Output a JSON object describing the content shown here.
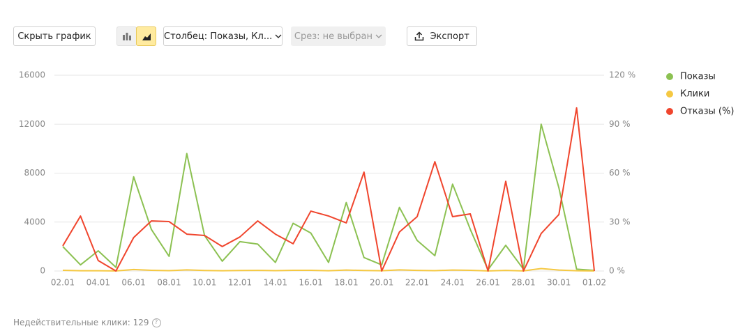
{
  "toolbar": {
    "hide_chart": "Скрыть график",
    "column": "Столбец: Показы, Кл...",
    "slice": "Срез: не выбран",
    "export": "Экспорт"
  },
  "chart_data": {
    "type": "line",
    "categories": [
      "02.01",
      null,
      "04.01",
      null,
      "06.01",
      null,
      "08.01",
      null,
      "10.01",
      null,
      "12.01",
      null,
      "14.01",
      null,
      "16.01",
      null,
      "18.01",
      null,
      "20.01",
      null,
      "22.01",
      null,
      "24.01",
      null,
      "26.01",
      null,
      "28.01",
      null,
      "30.01",
      null,
      "01.02"
    ],
    "series": [
      {
        "name": "Показы",
        "color": "#8cc152",
        "values": [
          2000,
          500,
          1650,
          300,
          7700,
          3400,
          1200,
          9600,
          2900,
          800,
          2400,
          2200,
          700,
          3900,
          3100,
          700,
          5600,
          1100,
          500,
          5200,
          2500,
          1250,
          7100,
          3400,
          100,
          2100,
          150,
          12000,
          6800,
          150,
          50
        ]
      },
      {
        "name": "Клики",
        "color": "#f5c842",
        "values": [
          60,
          20,
          20,
          10,
          120,
          60,
          30,
          90,
          40,
          20,
          40,
          50,
          30,
          60,
          60,
          20,
          80,
          40,
          20,
          90,
          50,
          30,
          80,
          60,
          10,
          50,
          10,
          200,
          80,
          20,
          10
        ]
      },
      {
        "name": "Отказы (%)",
        "color": "#f0452d",
        "axis": "y2",
        "values": [
          15.4,
          33.7,
          6.4,
          0,
          20.5,
          30.7,
          30.3,
          22.6,
          21.8,
          15,
          20.9,
          30.7,
          22.6,
          16.7,
          36.7,
          33.7,
          29.5,
          60.6,
          0,
          23.9,
          33.3,
          67,
          33.3,
          35,
          0,
          55,
          0,
          23,
          34.6,
          100,
          0
        ]
      }
    ],
    "ylim": [
      0,
      16000
    ],
    "yticks": [
      0,
      4000,
      8000,
      12000,
      16000
    ],
    "y2lim": [
      0,
      120
    ],
    "y2ticks": [
      {
        "value": 0,
        "label": "0 %"
      },
      {
        "value": 30,
        "label": "30 %"
      },
      {
        "value": 60,
        "label": "60 %"
      },
      {
        "value": 90,
        "label": "90 %"
      },
      {
        "value": 120,
        "label": "120 %"
      }
    ],
    "grid": true,
    "legend": "right"
  },
  "footer": {
    "text": "Недействительные клики: 129"
  }
}
